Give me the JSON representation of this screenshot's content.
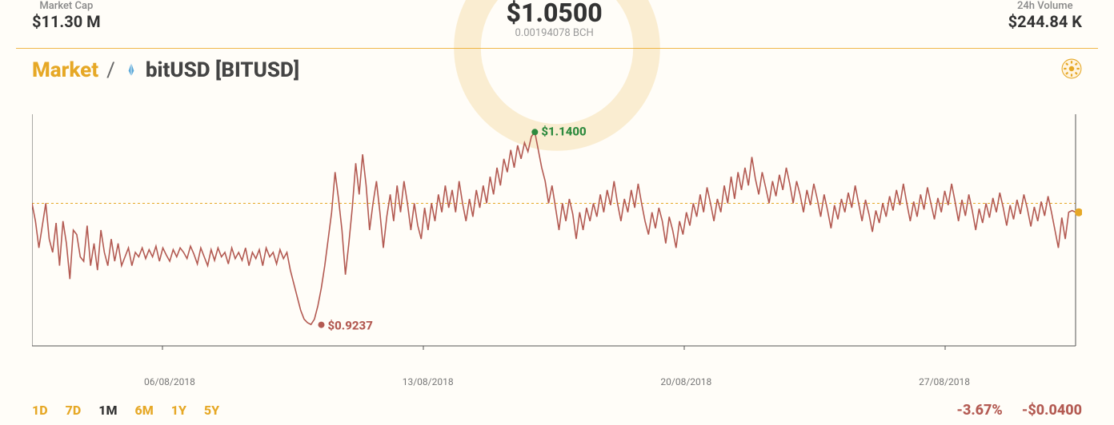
{
  "stats": {
    "market_cap_label": "Market Cap",
    "market_cap_value": "$11.30 M",
    "price_value": "$1.0500",
    "price_sub": "0.00194078 BCH",
    "volume_label": "24h Volume",
    "volume_value": "$244.84 K"
  },
  "title": {
    "breadcrumb": "Market",
    "coin": "bitUSD [BITUSD]"
  },
  "chart": {
    "type": "line",
    "line_color": "#b35a52",
    "line_width": 1.6,
    "axis_color": "#555555",
    "ref_line_color": "#e6a826",
    "ref_line_dash": "3,3",
    "background_color": "#fffdf8",
    "ylim": [
      0.9,
      1.16
    ],
    "x_tick_labels": [
      "06/08/2018",
      "13/08/2018",
      "20/08/2018",
      "27/08/2018"
    ],
    "ref_line_y": 1.06,
    "peak": {
      "label": "$1.1400",
      "x_index": 146,
      "y": 1.14,
      "color": "#2d8a3e"
    },
    "low": {
      "label": "$0.9237",
      "x_index": 84,
      "y": 0.9237,
      "color": "#b35a52"
    },
    "end_dot_color": "#e6a826",
    "series": [
      1.06,
      1.04,
      1.01,
      1.035,
      1.06,
      1.02,
      1.005,
      1.038,
      0.99,
      1.04,
      1.015,
      0.975,
      1.03,
      1.025,
      1.0,
      0.995,
      1.035,
      0.99,
      1.015,
      0.985,
      1.03,
      1.005,
      0.99,
      1.02,
      0.995,
      1.015,
      0.99,
      1.0,
      1.01,
      0.99,
      1.005,
      1.0,
      1.01,
      0.998,
      1.008,
      1.0,
      1.012,
      0.995,
      1.01,
      1.002,
      0.995,
      1.008,
      1.0,
      1.01,
      1.005,
      0.998,
      1.012,
      1.003,
      0.992,
      1.01,
      1.0,
      0.99,
      1.008,
      0.996,
      1.01,
      1.0,
      1.005,
      0.992,
      1.01,
      0.998,
      1.005,
      0.996,
      1.01,
      0.99,
      1.005,
      0.998,
      1.008,
      0.99,
      1.01,
      1.0,
      1.005,
      0.992,
      1.008,
      0.998,
      1.005,
      0.985,
      0.97,
      0.955,
      0.94,
      0.93,
      0.926,
      0.924,
      0.93,
      0.945,
      0.965,
      0.99,
      1.02,
      1.05,
      1.095,
      1.065,
      1.03,
      0.98,
      1.015,
      1.055,
      1.105,
      1.07,
      1.115,
      1.08,
      1.03,
      1.06,
      1.085,
      1.05,
      1.01,
      1.045,
      1.07,
      1.04,
      1.08,
      1.05,
      1.085,
      1.06,
      1.03,
      1.06,
      1.035,
      1.02,
      1.055,
      1.03,
      1.06,
      1.04,
      1.07,
      1.05,
      1.08,
      1.055,
      1.075,
      1.05,
      1.085,
      1.06,
      1.04,
      1.065,
      1.045,
      1.075,
      1.055,
      1.08,
      1.06,
      1.09,
      1.07,
      1.1,
      1.08,
      1.11,
      1.095,
      1.12,
      1.1,
      1.125,
      1.11,
      1.128,
      1.118,
      1.135,
      1.14,
      1.12,
      1.1,
      1.085,
      1.06,
      1.08,
      1.055,
      1.03,
      1.06,
      1.04,
      1.065,
      1.048,
      1.02,
      1.05,
      1.03,
      1.055,
      1.04,
      1.06,
      1.045,
      1.07,
      1.05,
      1.075,
      1.058,
      1.085,
      1.06,
      1.04,
      1.065,
      1.05,
      1.075,
      1.055,
      1.082,
      1.06,
      1.04,
      1.025,
      1.05,
      1.032,
      1.055,
      1.04,
      1.015,
      1.045,
      1.03,
      1.01,
      1.04,
      1.025,
      1.05,
      1.035,
      1.06,
      1.045,
      1.07,
      1.05,
      1.078,
      1.06,
      1.04,
      1.065,
      1.05,
      1.08,
      1.06,
      1.09,
      1.065,
      1.095,
      1.075,
      1.1,
      1.08,
      1.112,
      1.088,
      1.07,
      1.095,
      1.078,
      1.06,
      1.085,
      1.068,
      1.092,
      1.075,
      1.1,
      1.082,
      1.06,
      1.085,
      1.07,
      1.05,
      1.075,
      1.058,
      1.082,
      1.065,
      1.045,
      1.07,
      1.052,
      1.032,
      1.058,
      1.042,
      1.065,
      1.05,
      1.072,
      1.055,
      1.08,
      1.06,
      1.04,
      1.064,
      1.048,
      1.028,
      1.052,
      1.038,
      1.06,
      1.045,
      1.068,
      1.052,
      1.075,
      1.058,
      1.082,
      1.06,
      1.04,
      1.062,
      1.045,
      1.07,
      1.053,
      1.078,
      1.06,
      1.042,
      1.066,
      1.05,
      1.074,
      1.058,
      1.082,
      1.062,
      1.04,
      1.064,
      1.046,
      1.07,
      1.052,
      1.03,
      1.054,
      1.038,
      1.06,
      1.044,
      1.066,
      1.05,
      1.072,
      1.055,
      1.035,
      1.058,
      1.042,
      1.064,
      1.048,
      1.07,
      1.054,
      1.034,
      1.056,
      1.04,
      1.062,
      1.046,
      1.068,
      1.05,
      1.03,
      1.01,
      1.044,
      1.02,
      1.05,
      1.052,
      1.05
    ]
  },
  "ranges": {
    "options": [
      "1D",
      "7D",
      "1M",
      "6M",
      "1Y",
      "5Y"
    ],
    "active": "1M"
  },
  "deltas": {
    "pct": "-3.67%",
    "abs": "-$0.0400"
  },
  "colors": {
    "accent": "#e6a826",
    "text_dark": "#333333",
    "text_muted": "#888888",
    "negative": "#b35a52",
    "positive": "#2d8a3e"
  }
}
